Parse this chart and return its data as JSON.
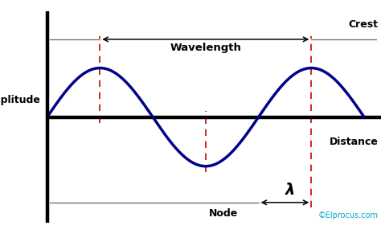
{
  "bg_color": "#ffffff",
  "wave_color": "#00008B",
  "wave_lw": 2.5,
  "axis_color": "#000000",
  "axis_lw": 3.2,
  "dash_color": "#cc0000",
  "dash_lw": 1.2,
  "shelf_color": "#666666",
  "shelf_lw": 0.9,
  "A": 0.65,
  "label_amplitude": "Amplitude",
  "label_wavelength": "Wavelength",
  "label_crest": "Crest",
  "label_distance": "Distance",
  "label_node": "Node",
  "label_lambda": "λ",
  "label_copyright": "©Elprocus.com",
  "copyright_color": "#00aacc",
  "fs_bold": 9,
  "fs_lambda": 14,
  "fs_copy": 7
}
